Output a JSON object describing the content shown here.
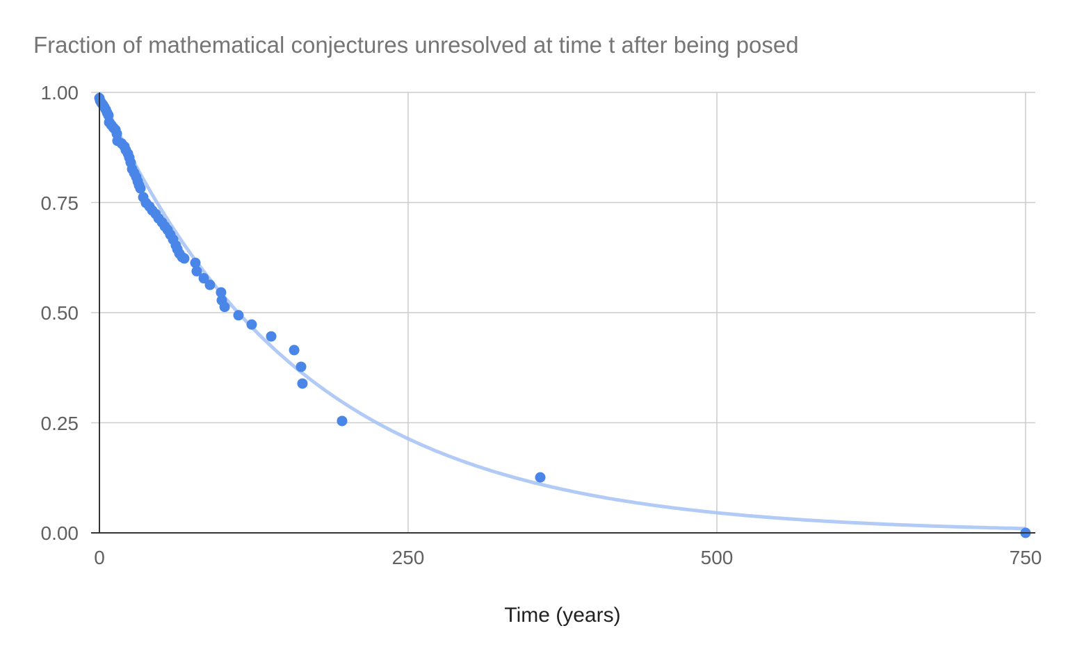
{
  "chart_data": {
    "type": "scatter",
    "title": "Fraction of mathematical conjectures unresolved at time t after being posed",
    "xlabel": "Time (years)",
    "ylabel": "",
    "xlim": [
      0,
      750
    ],
    "ylim": [
      0,
      1
    ],
    "x_ticks": [
      "0",
      "250",
      "500",
      "750"
    ],
    "y_ticks": [
      "0.00",
      "0.25",
      "0.50",
      "0.75",
      "1.00"
    ],
    "grid": true,
    "legend": "none",
    "trendline": "exponential",
    "colors": {
      "points": "#4a86e8",
      "trendline": "#a4c2f4",
      "grid": "#cccccc",
      "axis": "#333333"
    },
    "points": [
      [
        0,
        0.987
      ],
      [
        0.6,
        0.981
      ],
      [
        1.7,
        0.976
      ],
      [
        2.8,
        0.972
      ],
      [
        3.9,
        0.967
      ],
      [
        5.1,
        0.961
      ],
      [
        6.2,
        0.954
      ],
      [
        7.3,
        0.948
      ],
      [
        7.9,
        0.932
      ],
      [
        9.6,
        0.926
      ],
      [
        11.3,
        0.92
      ],
      [
        13,
        0.915
      ],
      [
        14.1,
        0.906
      ],
      [
        14.6,
        0.89
      ],
      [
        18,
        0.884
      ],
      [
        20.3,
        0.877
      ],
      [
        21.4,
        0.869
      ],
      [
        23.1,
        0.861
      ],
      [
        24.2,
        0.852
      ],
      [
        25.3,
        0.841
      ],
      [
        26.5,
        0.826
      ],
      [
        28.2,
        0.817
      ],
      [
        29.8,
        0.808
      ],
      [
        31,
        0.798
      ],
      [
        32.1,
        0.789
      ],
      [
        33.2,
        0.782
      ],
      [
        35.5,
        0.762
      ],
      [
        37.7,
        0.749
      ],
      [
        40.5,
        0.741
      ],
      [
        42.8,
        0.732
      ],
      [
        45.6,
        0.724
      ],
      [
        47.9,
        0.714
      ],
      [
        50.7,
        0.705
      ],
      [
        52.9,
        0.696
      ],
      [
        55.2,
        0.688
      ],
      [
        57.4,
        0.677
      ],
      [
        59.7,
        0.666
      ],
      [
        61.9,
        0.653
      ],
      [
        63.1,
        0.644
      ],
      [
        64.8,
        0.634
      ],
      [
        67,
        0.626
      ],
      [
        68.7,
        0.623
      ],
      [
        77.7,
        0.613
      ],
      [
        78.8,
        0.594
      ],
      [
        84.5,
        0.578
      ],
      [
        89.5,
        0.563
      ],
      [
        98.5,
        0.546
      ],
      [
        99.1,
        0.528
      ],
      [
        101.4,
        0.513
      ],
      [
        112.6,
        0.494
      ],
      [
        123.3,
        0.473
      ],
      [
        139.1,
        0.446
      ],
      [
        157.7,
        0.415
      ],
      [
        163.3,
        0.377
      ],
      [
        164.4,
        0.339
      ],
      [
        196.5,
        0.254
      ],
      [
        357,
        0.126
      ],
      [
        750,
        0.0
      ]
    ]
  }
}
